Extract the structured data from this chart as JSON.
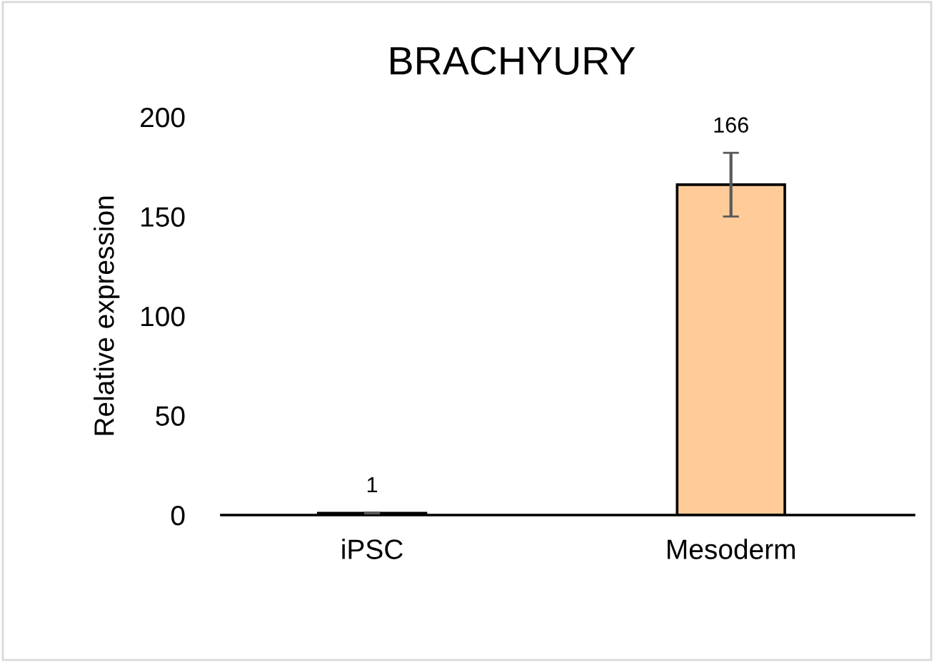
{
  "chart_data": {
    "type": "bar",
    "title": "BRACHYURY",
    "ylabel": "Relative expression",
    "categories": [
      "iPSC",
      "Mesoderm"
    ],
    "values": [
      1,
      166
    ],
    "errors": [
      0.2,
      16
    ],
    "color": "#ffcc99",
    "ylim": [
      0,
      200
    ],
    "yticks": [
      0,
      50,
      100,
      150,
      200
    ],
    "grid": false,
    "data_labels": true
  }
}
